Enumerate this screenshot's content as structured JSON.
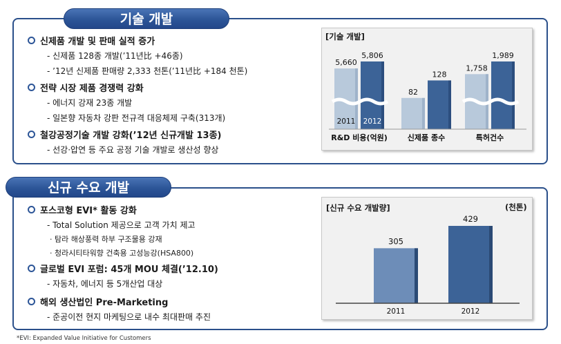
{
  "section1": {
    "title": "기술 개발",
    "bullets": [
      {
        "label": "신제품 개발 및 판매 실적 증가",
        "subs": [
          "- 신제품 128종 개발(’11년比 +46종)",
          "- ’12년 신제품 판매량 2,333 천톤(’11년比 +184 천톤)"
        ]
      },
      {
        "label": "전략 시장 제품 경쟁력 강화",
        "subs": [
          "- 에너지 강재 23종 개발",
          "- 일본향 자동차 강판 전규격 대응체제 구축(313개)"
        ]
      },
      {
        "label": "철강공정기술 개발 강화(’12년 신규개발 13종)",
        "subs": [
          "- 선강·압연 등 주요 공정 기술 개발로 생산성 향상"
        ]
      }
    ]
  },
  "section2": {
    "title": "신규 수요 개발",
    "bullets": [
      {
        "label": "포스코형 EVI* 활동 강화",
        "subs": [
          "- Total Solution 제공으로 고객 가치 제고"
        ],
        "subsubs": [
          "· 탐라 해상풍력 하부 구조물용 강재",
          "· 청라시티타워향 건축용 고성능강(HSA800)"
        ]
      },
      {
        "label": "글로벌 EVI 포럼: 45개 MOU 체결(’12.10)",
        "subs": [
          "- 자동차, 에너지 등 5개산업 대상"
        ]
      },
      {
        "label": "해외 생산법인 Pre-Marketing",
        "subs": [
          "- 준공이전 현지 마케팅으로 내수 최대판매 추진"
        ]
      }
    ]
  },
  "footnote": "*EVI: Expanded Value Initiative for Customers",
  "colors": {
    "bar_2011_light": "#b8c9db",
    "bar_2012_dark": "#3c6397",
    "bar_2011_chart2": "#6d8db8",
    "bar_2012_chart2": "#3c6397"
  },
  "chart_data": [
    {
      "type": "bar",
      "title": "[기술 개발]",
      "categories": [
        "R&D 비용(억원)",
        "신제품 종수",
        "특허건수"
      ],
      "series": [
        {
          "name": "2011",
          "values": [
            5660,
            82,
            1758
          ]
        },
        {
          "name": "2012",
          "values": [
            5806,
            128,
            1989
          ]
        }
      ],
      "value_labels": {
        "2011": [
          "5,660",
          "82",
          "1,758"
        ],
        "2012": [
          "5,806",
          "128",
          "1,989"
        ]
      },
      "axis_break": true
    },
    {
      "type": "bar",
      "title": "[신규 수요 개발량]",
      "unit": "(천톤)",
      "categories": [
        "2011",
        "2012"
      ],
      "values": [
        305,
        429
      ],
      "value_labels": [
        "305",
        "429"
      ]
    }
  ]
}
